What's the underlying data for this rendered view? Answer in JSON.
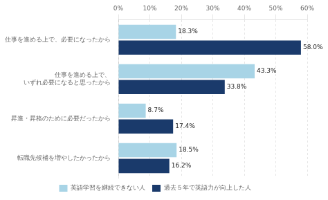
{
  "chart_data": {
    "type": "bar",
    "orientation": "horizontal",
    "categories": [
      "仕事を進める上で、必要になったから",
      "仕事を進める上で、\nいずれ必要になると思ったから",
      "昇進・昇格のために必要だったから",
      "転職先候補を増やしたかったから"
    ],
    "series": [
      {
        "name": "英語学習を継続できない人",
        "color": "#a8d4e6",
        "values": [
          18.3,
          43.3,
          8.7,
          18.5
        ],
        "value_labels": [
          "18.3%",
          "43.3%",
          "8.7%",
          "18.5%"
        ]
      },
      {
        "name": "過去５年で英語力が向上した人",
        "color": "#1a3a6b",
        "values": [
          58.0,
          33.8,
          17.4,
          16.2
        ],
        "value_labels": [
          "58.0%",
          "33.8%",
          "17.4%",
          "16.2%"
        ]
      }
    ],
    "xlim": [
      0,
      60
    ],
    "xticks": [
      {
        "value": 0,
        "label": "0%"
      },
      {
        "value": 10,
        "label": "10%"
      },
      {
        "value": 20,
        "label": "20%"
      },
      {
        "value": 30,
        "label": "30%"
      },
      {
        "value": 40,
        "label": "40%"
      },
      {
        "value": 50,
        "label": "50%"
      },
      {
        "value": 60,
        "label": "60%"
      }
    ],
    "grid": true,
    "legend": "bottom",
    "data_labels": true
  }
}
